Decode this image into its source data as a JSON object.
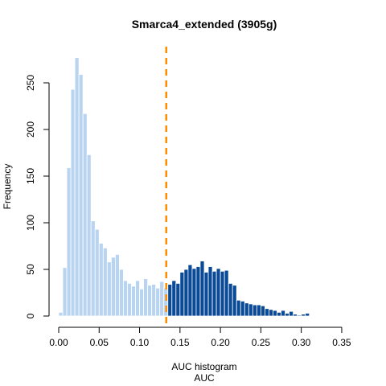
{
  "chart_data": {
    "type": "bar",
    "title": "Smarca4_extended (3905g)",
    "xlabel_lines": [
      "AUC histogram",
      "AUC"
    ],
    "ylabel": "Frequency",
    "xlim": [
      0,
      0.36
    ],
    "ylim": [
      0,
      280
    ],
    "x_ticks": [
      0.0,
      0.05,
      0.1,
      0.15,
      0.2,
      0.25,
      0.3,
      0.35
    ],
    "x_tick_labels": [
      "0.00",
      "0.05",
      "0.10",
      "0.15",
      "0.20",
      "0.25",
      "0.30",
      "0.35"
    ],
    "y_ticks": [
      0,
      50,
      100,
      150,
      200,
      250
    ],
    "y_tick_labels": [
      "0",
      "50",
      "100",
      "150",
      "200",
      "250"
    ],
    "bin_width": 0.005,
    "bin_start": 0,
    "threshold": 0.133,
    "colors": {
      "below_threshold": "#b9d4f1",
      "above_threshold": "#0a4a96",
      "threshold_line": "#ff8c00",
      "bar_border": "#ffffff"
    },
    "values": [
      4,
      52,
      159,
      243,
      277,
      259,
      217,
      173,
      102,
      93,
      78,
      73,
      58,
      63,
      66,
      50,
      38,
      35,
      32,
      38,
      29,
      40,
      33,
      34,
      30,
      37,
      30,
      34,
      38,
      35,
      47,
      50,
      55,
      51,
      53,
      59,
      47,
      53,
      48,
      51,
      48,
      49,
      35,
      33,
      17,
      16,
      14,
      13,
      12,
      12,
      11,
      8,
      7,
      6,
      4,
      6,
      3,
      5,
      2,
      1,
      2,
      3
    ]
  }
}
